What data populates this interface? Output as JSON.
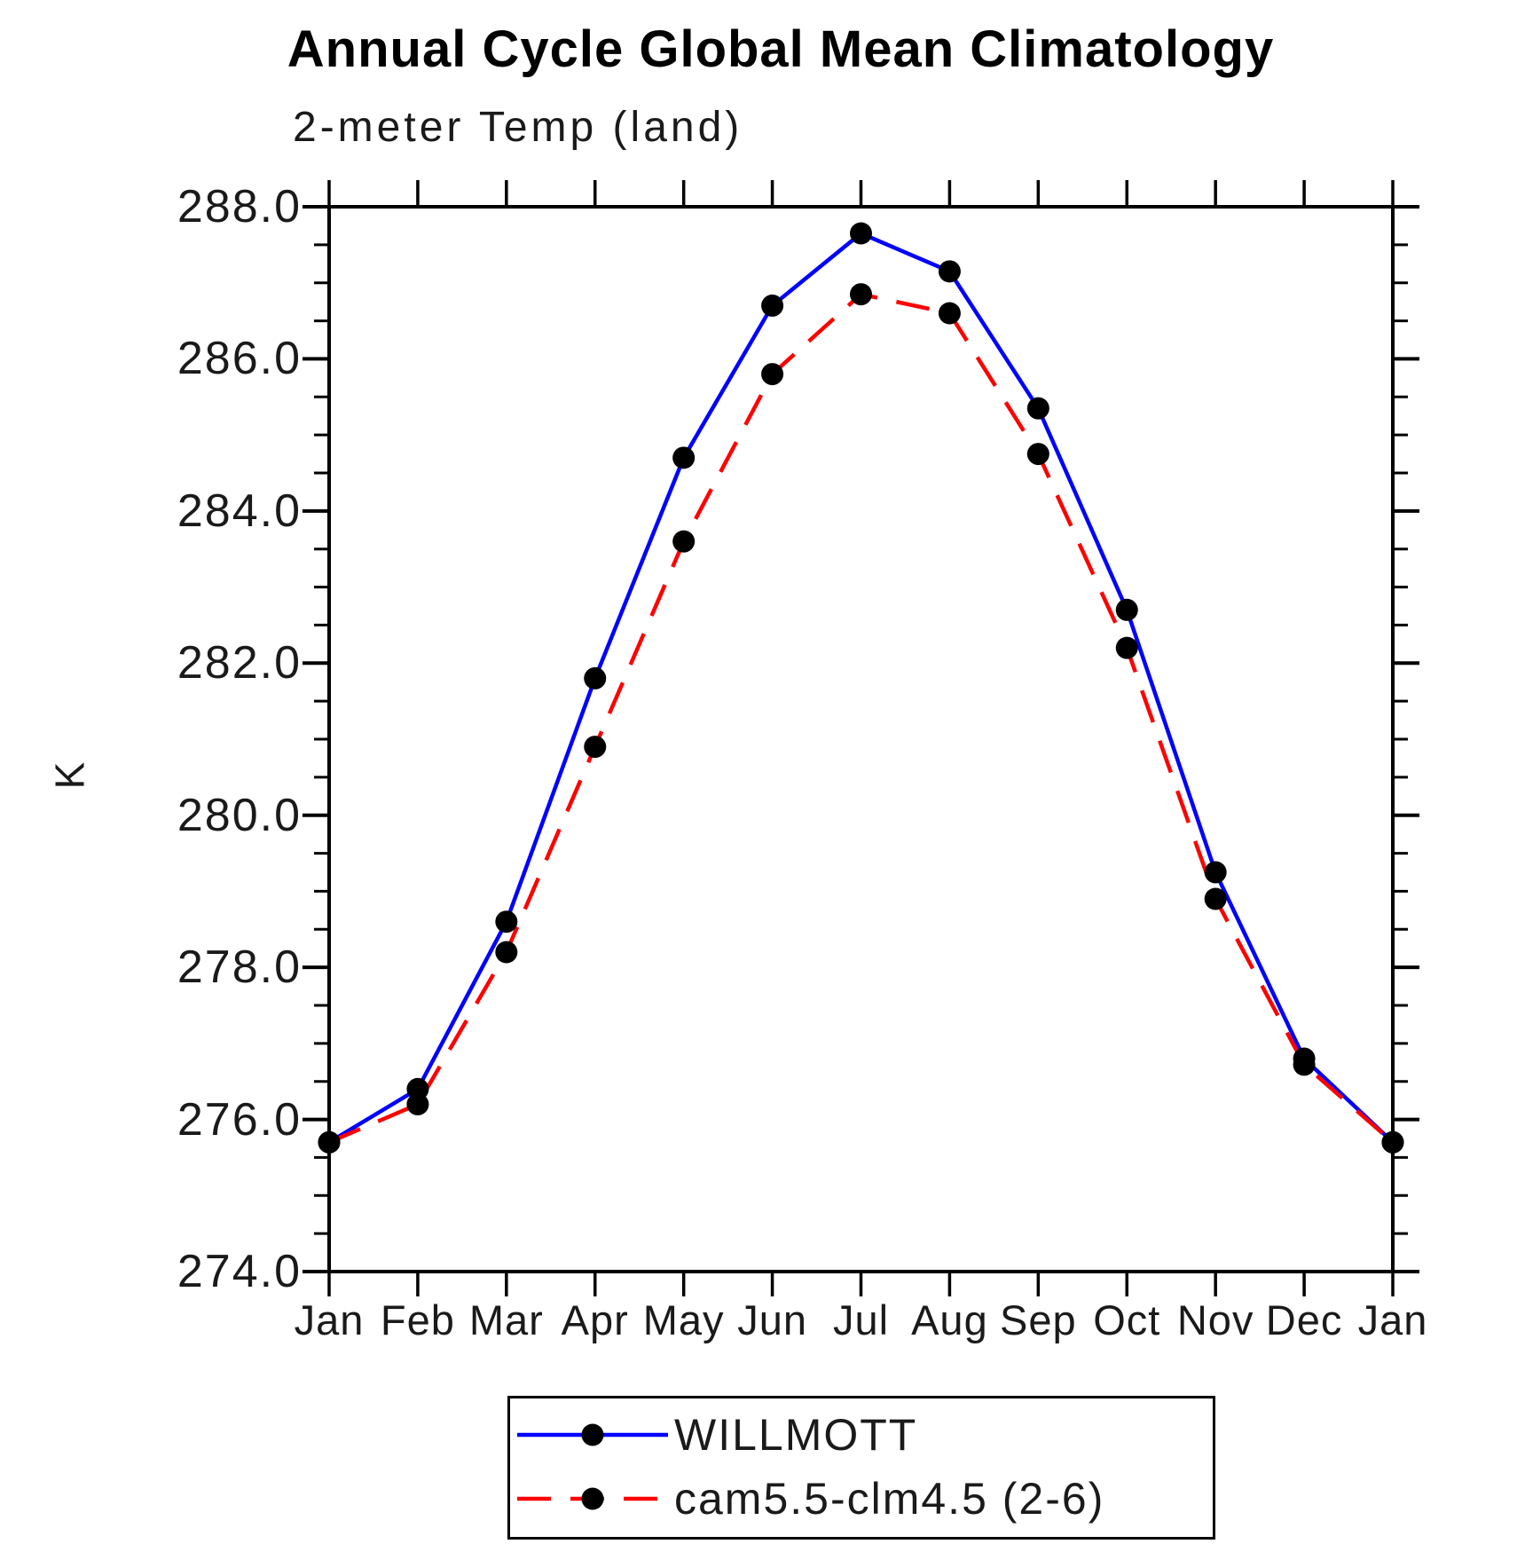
{
  "title": "Annual Cycle Global Mean Climatology",
  "subtitle": "2-meter Temp (land)",
  "ylabel": "K",
  "legend": [
    {
      "label": "WILLMOTT",
      "color": "#0000ff",
      "style": "solid",
      "marker_color": "#000000"
    },
    {
      "label": "cam5.5-clm4.5 (2-6)",
      "color": "#ff0000",
      "style": "dashed",
      "marker_color": "#000000"
    }
  ],
  "chart_data": {
    "type": "line",
    "categories": [
      "Jan",
      "Feb",
      "Mar",
      "Apr",
      "May",
      "Jun",
      "Jul",
      "Aug",
      "Sep",
      "Oct",
      "Nov",
      "Dec",
      "Jan"
    ],
    "series": [
      {
        "name": "WILLMOTT",
        "color": "#0000ff",
        "line": "solid",
        "marker": "circle",
        "marker_color": "#000000",
        "values": [
          275.7,
          276.4,
          278.6,
          281.8,
          284.7,
          286.7,
          287.65,
          287.15,
          285.35,
          282.7,
          279.25,
          276.8,
          275.7
        ]
      },
      {
        "name": "cam5.5-clm4.5 (2-6)",
        "color": "#ff0000",
        "line": "dashed",
        "marker": "circle",
        "marker_color": "#000000",
        "values": [
          275.7,
          276.2,
          278.2,
          280.9,
          283.6,
          285.8,
          286.85,
          286.6,
          284.75,
          282.2,
          278.9,
          276.72,
          275.7
        ]
      }
    ],
    "title": "Annual Cycle Global Mean Climatology",
    "subtitle": "2-meter Temp (land)",
    "xlabel": "",
    "ylabel": "K",
    "ylim": [
      274.0,
      288.0
    ],
    "y_major_step": 2.0,
    "y_minor_step": 0.5,
    "y_tick_labels": [
      "274.0",
      "276.0",
      "278.0",
      "280.0",
      "282.0",
      "284.0",
      "286.0",
      "288.0"
    ],
    "grid": false,
    "legend_position": "bottom"
  }
}
